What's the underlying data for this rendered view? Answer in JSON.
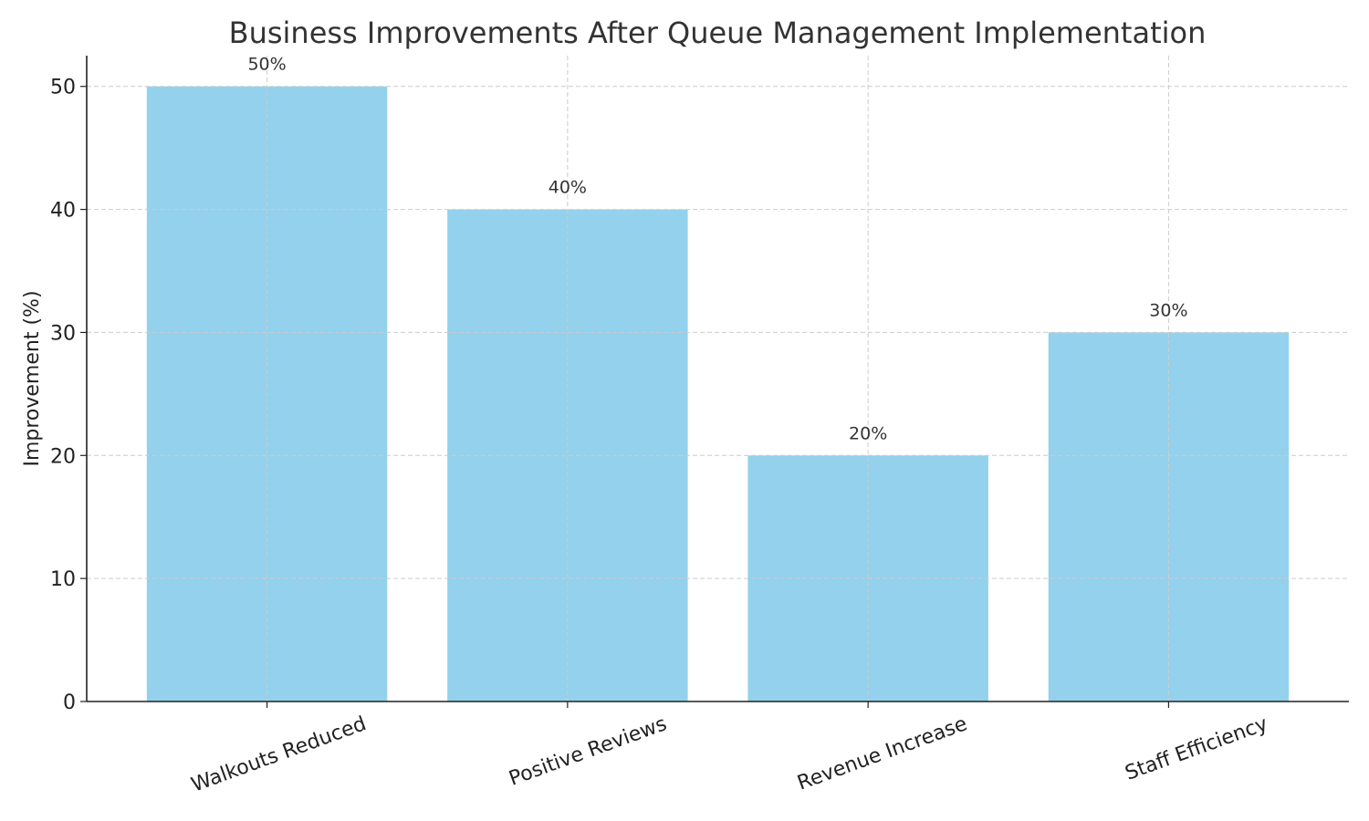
{
  "chart_data": {
    "type": "bar",
    "title": "Business Improvements After Queue Management Implementation",
    "xlabel": "",
    "ylabel": "Improvement (%)",
    "categories": [
      "Walkouts Reduced",
      "Positive Reviews",
      "Revenue Increase",
      "Staff Efficiency"
    ],
    "values": [
      50,
      40,
      20,
      30
    ],
    "data_labels": [
      "50%",
      "40%",
      "20%",
      "30%"
    ],
    "ylim": [
      0,
      52.5
    ],
    "yticks": [
      0,
      10,
      20,
      30,
      40,
      50
    ],
    "grid": true,
    "bar_color": "#93d1ec"
  }
}
